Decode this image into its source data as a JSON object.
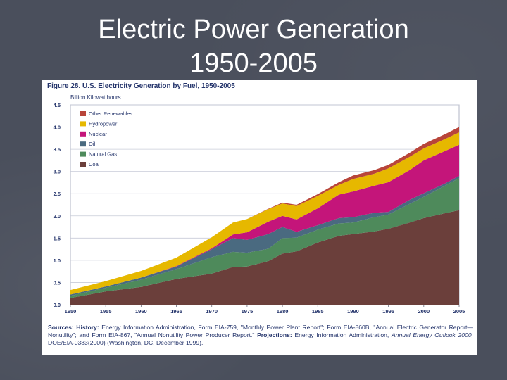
{
  "slide": {
    "title_line1": "Electric Power Generation",
    "title_line2": "1950-2005"
  },
  "figure": {
    "title": "Figure 28. U.S. Electricity Generation by Fuel, 1950-2005",
    "unit": "Billion Kilowatthours"
  },
  "sources": {
    "label_history": "Sources: History:",
    "text_history": "Energy Information Administration, Form EIA-759, \"Monthly Power Plant Report\"; Form EIA-860B, \"Annual Electric Generator Report—Nonutility\"; and Form EIA-867, \"Annual Nonutility Power Producer Report.\"",
    "label_projections": "Projections:",
    "text_projections_1": "Energy Information Administration,",
    "text_projections_italic": "Annual Energy Outlook 2000,",
    "text_projections_2": "DOE/EIA-0383(2000) (Washington, DC, December 1999)."
  },
  "colors": {
    "coal": "#6b3f3b",
    "natural_gas": "#4e8a5b",
    "oil": "#4a6a80",
    "nuclear": "#c4157a",
    "hydropower": "#e6b800",
    "other_renewables": "#b8453a",
    "plot_bg": "#ffffff",
    "axis_text": "#24346b"
  },
  "chart_data": {
    "type": "area",
    "stacked": true,
    "title": "Figure 28. U.S. Electricity Generation by Fuel, 1950-2005",
    "ylabel": "Billion Kilowatthours",
    "xlim": [
      1950,
      2005
    ],
    "ylim": [
      0,
      4.5
    ],
    "yticks": [
      "0.0",
      "0.5",
      "1.0",
      "1.5",
      "2.0",
      "2.5",
      "3.0",
      "3.5",
      "4.0",
      "4.5"
    ],
    "xticks": [
      "1950",
      "1955",
      "1960",
      "1965",
      "1970",
      "1975",
      "1980",
      "1985",
      "1990",
      "1995",
      "2000",
      "2005"
    ],
    "legend_position": "top-left",
    "x": [
      1950,
      1955,
      1960,
      1965,
      1970,
      1973,
      1975,
      1978,
      1980,
      1982,
      1985,
      1988,
      1990,
      1993,
      1995,
      1998,
      2000,
      2003,
      2005
    ],
    "series": [
      {
        "name": "Coal",
        "key": "coal",
        "values": [
          0.15,
          0.3,
          0.4,
          0.58,
          0.7,
          0.85,
          0.86,
          0.98,
          1.15,
          1.2,
          1.4,
          1.55,
          1.59,
          1.65,
          1.71,
          1.85,
          1.95,
          2.06,
          2.13
        ]
      },
      {
        "name": "Natural Gas",
        "key": "natural_gas",
        "values": [
          0.05,
          0.08,
          0.16,
          0.22,
          0.37,
          0.34,
          0.31,
          0.28,
          0.35,
          0.31,
          0.29,
          0.28,
          0.26,
          0.32,
          0.32,
          0.42,
          0.48,
          0.62,
          0.72
        ]
      },
      {
        "name": "Oil",
        "key": "oil",
        "values": [
          0.03,
          0.03,
          0.05,
          0.06,
          0.18,
          0.31,
          0.29,
          0.33,
          0.25,
          0.13,
          0.1,
          0.12,
          0.12,
          0.1,
          0.06,
          0.09,
          0.08,
          0.05,
          0.05
        ]
      },
      {
        "name": "Nuclear",
        "key": "nuclear",
        "values": [
          0.0,
          0.0,
          0.0,
          0.01,
          0.02,
          0.08,
          0.17,
          0.28,
          0.25,
          0.28,
          0.38,
          0.53,
          0.58,
          0.61,
          0.67,
          0.67,
          0.74,
          0.73,
          0.7
        ]
      },
      {
        "name": "Hydropower",
        "key": "hydropower",
        "values": [
          0.1,
          0.12,
          0.15,
          0.19,
          0.25,
          0.27,
          0.3,
          0.28,
          0.28,
          0.3,
          0.28,
          0.22,
          0.28,
          0.27,
          0.31,
          0.3,
          0.27,
          0.27,
          0.28
        ]
      },
      {
        "name": "Other Renewables",
        "key": "other_renewables",
        "values": [
          0.0,
          0.0,
          0.0,
          0.0,
          0.0,
          0.0,
          0.0,
          0.01,
          0.02,
          0.03,
          0.04,
          0.06,
          0.08,
          0.08,
          0.08,
          0.09,
          0.1,
          0.11,
          0.12
        ]
      }
    ],
    "legend_order": [
      "Other Renewables",
      "Hydropower",
      "Nuclear",
      "Oil",
      "Natural Gas",
      "Coal"
    ]
  }
}
